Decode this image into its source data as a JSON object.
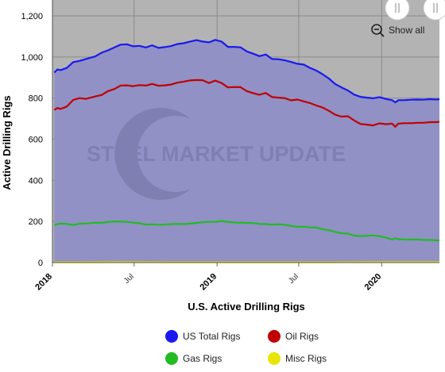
{
  "chart_data": {
    "type": "area",
    "xlabel": "U.S. Active Drilling Rigs",
    "ylabel": "Active Drilling Rigs",
    "ylim": [
      0,
      1200
    ],
    "yticks": [
      0,
      200,
      400,
      600,
      800,
      "1,000",
      "1,200"
    ],
    "yticks_values": [
      0,
      200,
      400,
      600,
      800,
      1000,
      1200
    ],
    "xlim": [
      "2018-01-01",
      "2020-05-08"
    ],
    "xticks": [
      {
        "date": "2018-01-01",
        "label": "2018",
        "major": true
      },
      {
        "date": "2018-07-01",
        "label": "Jul",
        "major": false
      },
      {
        "date": "2019-01-01",
        "label": "2019",
        "major": true
      },
      {
        "date": "2019-07-01",
        "label": "Jul",
        "major": false
      },
      {
        "date": "2020-01-01",
        "label": "2020",
        "major": true
      }
    ],
    "grid": true,
    "legend": "bottom",
    "watermark": "STEEL MARKET UPDATE",
    "show_all_label": "Show all",
    "colors": {
      "plot_background": "#b3b3b3",
      "area_fill": "#9191c6",
      "grid": "#8a8a8a",
      "bottom_band": "#ffffff"
    },
    "series": [
      {
        "name": "US Total Rigs",
        "color": "#1a1aee",
        "points": [
          [
            "2018-01-05",
            924
          ],
          [
            "2018-01-12",
            939
          ],
          [
            "2018-01-19",
            936
          ],
          [
            "2018-02-02",
            947
          ],
          [
            "2018-02-16",
            975
          ],
          [
            "2018-03-02",
            981
          ],
          [
            "2018-03-16",
            990
          ],
          [
            "2018-04-06",
            1003
          ],
          [
            "2018-04-20",
            1021
          ],
          [
            "2018-05-04",
            1032
          ],
          [
            "2018-05-18",
            1046
          ],
          [
            "2018-06-01",
            1060
          ],
          [
            "2018-06-15",
            1062
          ],
          [
            "2018-06-29",
            1052
          ],
          [
            "2018-07-13",
            1054
          ],
          [
            "2018-07-27",
            1046
          ],
          [
            "2018-08-10",
            1057
          ],
          [
            "2018-08-24",
            1044
          ],
          [
            "2018-09-07",
            1048
          ],
          [
            "2018-09-21",
            1053
          ],
          [
            "2018-10-05",
            1063
          ],
          [
            "2018-10-19",
            1067
          ],
          [
            "2018-11-02",
            1075
          ],
          [
            "2018-11-16",
            1082
          ],
          [
            "2018-11-30",
            1075
          ],
          [
            "2018-12-14",
            1071
          ],
          [
            "2018-12-28",
            1083
          ],
          [
            "2019-01-11",
            1075
          ],
          [
            "2019-01-25",
            1049
          ],
          [
            "2019-02-08",
            1049
          ],
          [
            "2019-02-22",
            1047
          ],
          [
            "2019-03-08",
            1027
          ],
          [
            "2019-03-22",
            1016
          ],
          [
            "2019-04-05",
            1004
          ],
          [
            "2019-04-19",
            1012
          ],
          [
            "2019-05-03",
            990
          ],
          [
            "2019-05-17",
            989
          ],
          [
            "2019-05-31",
            984
          ],
          [
            "2019-06-14",
            976
          ],
          [
            "2019-06-28",
            967
          ],
          [
            "2019-07-12",
            963
          ],
          [
            "2019-07-26",
            947
          ],
          [
            "2019-08-09",
            934
          ],
          [
            "2019-08-23",
            916
          ],
          [
            "2019-09-06",
            895
          ],
          [
            "2019-09-20",
            868
          ],
          [
            "2019-10-04",
            852
          ],
          [
            "2019-10-18",
            837
          ],
          [
            "2019-11-01",
            817
          ],
          [
            "2019-11-15",
            806
          ],
          [
            "2019-11-29",
            802
          ],
          [
            "2019-12-13",
            799
          ],
          [
            "2019-12-27",
            805
          ],
          [
            "2020-01-10",
            796
          ],
          [
            "2020-01-24",
            790
          ],
          [
            "2020-01-31",
            779
          ],
          [
            "2020-02-07",
            790
          ],
          [
            "2020-02-21",
            790
          ],
          [
            "2020-03-06",
            792
          ],
          [
            "2020-03-20",
            793
          ],
          [
            "2020-04-03",
            792
          ],
          [
            "2020-04-17",
            795
          ],
          [
            "2020-05-01",
            793
          ],
          [
            "2020-05-08",
            795
          ]
        ]
      },
      {
        "name": "Oil Rigs",
        "color": "#c00000",
        "points": [
          [
            "2018-01-05",
            742
          ],
          [
            "2018-01-12",
            752
          ],
          [
            "2018-01-19",
            747
          ],
          [
            "2018-02-02",
            759
          ],
          [
            "2018-02-16",
            791
          ],
          [
            "2018-03-02",
            800
          ],
          [
            "2018-03-16",
            796
          ],
          [
            "2018-04-06",
            808
          ],
          [
            "2018-04-20",
            815
          ],
          [
            "2018-05-04",
            834
          ],
          [
            "2018-05-18",
            844
          ],
          [
            "2018-06-01",
            861
          ],
          [
            "2018-06-15",
            862
          ],
          [
            "2018-06-29",
            858
          ],
          [
            "2018-07-13",
            863
          ],
          [
            "2018-07-27",
            861
          ],
          [
            "2018-08-10",
            869
          ],
          [
            "2018-08-24",
            860
          ],
          [
            "2018-09-07",
            862
          ],
          [
            "2018-09-21",
            866
          ],
          [
            "2018-10-05",
            875
          ],
          [
            "2018-10-19",
            880
          ],
          [
            "2018-11-02",
            886
          ],
          [
            "2018-11-16",
            888
          ],
          [
            "2018-11-30",
            887
          ],
          [
            "2018-12-14",
            873
          ],
          [
            "2018-12-28",
            885
          ],
          [
            "2019-01-11",
            873
          ],
          [
            "2019-01-25",
            852
          ],
          [
            "2019-02-08",
            854
          ],
          [
            "2019-02-22",
            853
          ],
          [
            "2019-03-08",
            834
          ],
          [
            "2019-03-22",
            824
          ],
          [
            "2019-04-05",
            816
          ],
          [
            "2019-04-19",
            825
          ],
          [
            "2019-05-03",
            805
          ],
          [
            "2019-05-17",
            802
          ],
          [
            "2019-05-31",
            800
          ],
          [
            "2019-06-14",
            789
          ],
          [
            "2019-06-28",
            793
          ],
          [
            "2019-07-12",
            784
          ],
          [
            "2019-07-26",
            776
          ],
          [
            "2019-08-09",
            764
          ],
          [
            "2019-08-23",
            754
          ],
          [
            "2019-09-06",
            738
          ],
          [
            "2019-09-20",
            719
          ],
          [
            "2019-10-04",
            710
          ],
          [
            "2019-10-18",
            712
          ],
          [
            "2019-11-01",
            691
          ],
          [
            "2019-11-15",
            674
          ],
          [
            "2019-11-29",
            671
          ],
          [
            "2019-12-13",
            667
          ],
          [
            "2019-12-27",
            677
          ],
          [
            "2020-01-10",
            673
          ],
          [
            "2020-01-24",
            676
          ],
          [
            "2020-01-31",
            660
          ],
          [
            "2020-02-07",
            676
          ],
          [
            "2020-02-21",
            678
          ],
          [
            "2020-03-06",
            678
          ],
          [
            "2020-03-20",
            680
          ],
          [
            "2020-04-03",
            680
          ],
          [
            "2020-04-17",
            683
          ],
          [
            "2020-05-01",
            683
          ],
          [
            "2020-05-08",
            685
          ]
        ]
      },
      {
        "name": "Gas Rigs",
        "color": "#22bb22",
        "points": [
          [
            "2018-01-05",
            182
          ],
          [
            "2018-01-12",
            187
          ],
          [
            "2018-01-19",
            189
          ],
          [
            "2018-02-02",
            188
          ],
          [
            "2018-02-16",
            183
          ],
          [
            "2018-03-02",
            189
          ],
          [
            "2018-03-16",
            190
          ],
          [
            "2018-04-06",
            194
          ],
          [
            "2018-04-20",
            193
          ],
          [
            "2018-05-04",
            197
          ],
          [
            "2018-05-18",
            200
          ],
          [
            "2018-06-01",
            199
          ],
          [
            "2018-06-15",
            198
          ],
          [
            "2018-06-29",
            194
          ],
          [
            "2018-07-13",
            191
          ],
          [
            "2018-07-27",
            185
          ],
          [
            "2018-08-10",
            186
          ],
          [
            "2018-08-24",
            184
          ],
          [
            "2018-09-07",
            185
          ],
          [
            "2018-09-21",
            187
          ],
          [
            "2018-10-05",
            188
          ],
          [
            "2018-10-19",
            187
          ],
          [
            "2018-11-02",
            189
          ],
          [
            "2018-11-16",
            193
          ],
          [
            "2018-11-30",
            196
          ],
          [
            "2018-12-14",
            198
          ],
          [
            "2018-12-28",
            198
          ],
          [
            "2019-01-11",
            202
          ],
          [
            "2019-01-25",
            197
          ],
          [
            "2019-02-08",
            195
          ],
          [
            "2019-02-22",
            194
          ],
          [
            "2019-03-08",
            193
          ],
          [
            "2019-03-22",
            192
          ],
          [
            "2019-04-05",
            188
          ],
          [
            "2019-04-19",
            187
          ],
          [
            "2019-05-03",
            185
          ],
          [
            "2019-05-17",
            186
          ],
          [
            "2019-05-31",
            184
          ],
          [
            "2019-06-14",
            178
          ],
          [
            "2019-06-28",
            174
          ],
          [
            "2019-07-12",
            174
          ],
          [
            "2019-07-26",
            171
          ],
          [
            "2019-08-09",
            170
          ],
          [
            "2019-08-23",
            162
          ],
          [
            "2019-09-06",
            157
          ],
          [
            "2019-09-20",
            149
          ],
          [
            "2019-10-04",
            142
          ],
          [
            "2019-10-18",
            141
          ],
          [
            "2019-11-01",
            131
          ],
          [
            "2019-11-15",
            129
          ],
          [
            "2019-11-29",
            130
          ],
          [
            "2019-12-13",
            132
          ],
          [
            "2019-12-27",
            128
          ],
          [
            "2020-01-10",
            122
          ],
          [
            "2020-01-24",
            112
          ],
          [
            "2020-01-31",
            118
          ],
          [
            "2020-02-07",
            114
          ],
          [
            "2020-02-21",
            112
          ],
          [
            "2020-03-06",
            112
          ],
          [
            "2020-03-20",
            112
          ],
          [
            "2020-04-03",
            110
          ],
          [
            "2020-04-17",
            110
          ],
          [
            "2020-05-01",
            108
          ],
          [
            "2020-05-08",
            108
          ]
        ]
      },
      {
        "name": "Misc Rigs",
        "color": "#e6e600",
        "points": [
          [
            "2018-01-05",
            1
          ],
          [
            "2018-03-02",
            1
          ],
          [
            "2018-06-01",
            2
          ],
          [
            "2018-09-07",
            1
          ],
          [
            "2018-12-28",
            1
          ],
          [
            "2019-03-08",
            1
          ],
          [
            "2019-06-14",
            1
          ],
          [
            "2019-09-06",
            1
          ],
          [
            "2019-12-13",
            2
          ],
          [
            "2020-03-06",
            2
          ],
          [
            "2020-05-08",
            2
          ]
        ]
      }
    ],
    "legend_entries": [
      {
        "name": "US Total Rigs",
        "color": "#1a1aee"
      },
      {
        "name": "Oil Rigs",
        "color": "#c00000"
      },
      {
        "name": "Gas Rigs",
        "color": "#22bb22"
      },
      {
        "name": "Misc Rigs",
        "color": "#e6e600"
      }
    ]
  }
}
